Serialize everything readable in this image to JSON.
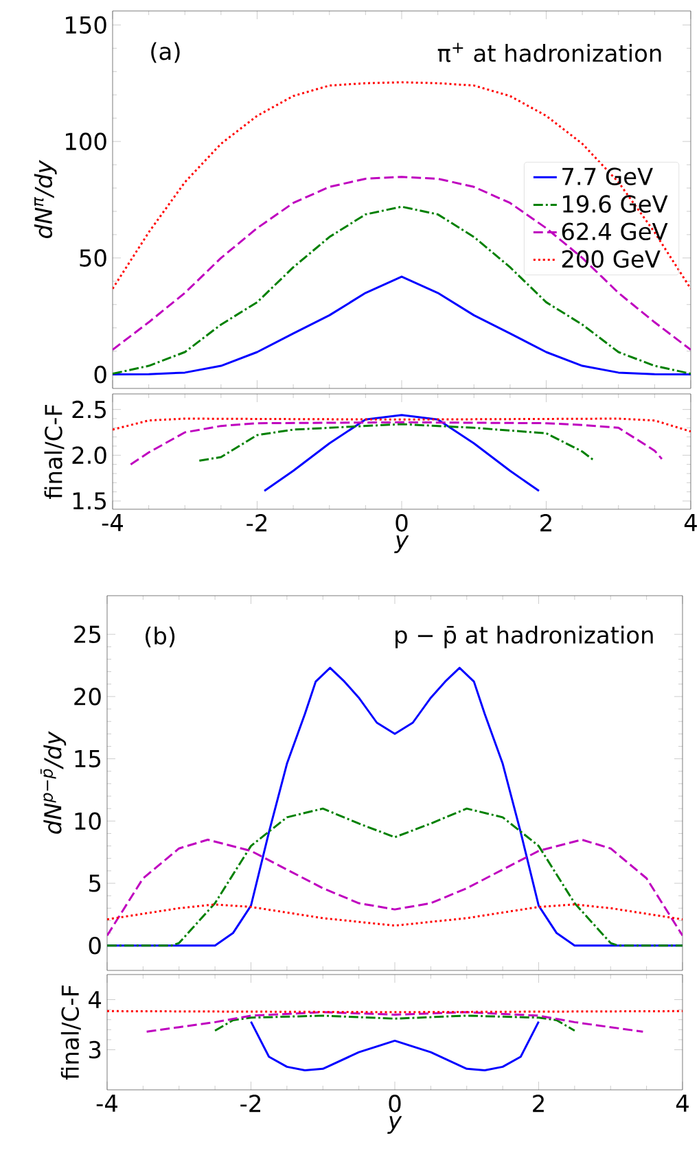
{
  "chart_data": [
    {
      "type": "line",
      "annotations": [
        "(a)",
        "π$^{+}$ at hadronization"
      ],
      "ylabel": "dN$^{π}$/dy",
      "xlim": [
        -4,
        4
      ],
      "xticks": [
        -4,
        -2,
        0,
        2,
        4
      ],
      "ylim": [
        -6,
        156
      ],
      "yticks": [
        0,
        50,
        100,
        150
      ],
      "tick_labels": "y",
      "legend": "right",
      "marker": "none",
      "series": [
        {
          "name": "7.7 GeV",
          "color": "#0000ff",
          "line_style": "solid",
          "x": [
            -4,
            -3.5,
            -3,
            -2.5,
            -2,
            -1.5,
            -1,
            -0.5,
            0,
            0.5,
            1,
            1.5,
            2,
            2.5,
            3,
            3.5,
            4
          ],
          "values": [
            0,
            0.1,
            0.8,
            3.7,
            9.6,
            17.6,
            25.4,
            35,
            42,
            35,
            25.4,
            17.6,
            9.6,
            3.7,
            0.8,
            0.1,
            0
          ]
        },
        {
          "name": "19.6 GeV",
          "color": "#008000",
          "line_style": "dashdot",
          "x": [
            -4,
            -3.5,
            -3,
            -2.5,
            -2,
            -1.5,
            -1,
            -0.5,
            0,
            0.5,
            1,
            1.5,
            2,
            2.5,
            3,
            3.5,
            4
          ],
          "values": [
            0.3,
            3.7,
            9.6,
            21.4,
            31,
            46,
            59,
            68.7,
            72,
            68.7,
            59,
            46,
            31,
            21.4,
            9.6,
            3.7,
            0.3
          ]
        },
        {
          "name": "62.4 GeV",
          "color": "#bf00bf",
          "line_style": "dashed",
          "x": [
            -4,
            -3.5,
            -3,
            -2.5,
            -2,
            -1.5,
            -1,
            -0.5,
            0,
            0.5,
            1,
            1.5,
            2,
            2.5,
            3,
            3.5,
            4
          ],
          "values": [
            10.6,
            22.4,
            35,
            50,
            62.8,
            73.6,
            80.5,
            84,
            84.8,
            84,
            80.5,
            73.6,
            62.8,
            50,
            35,
            22.4,
            10.6
          ]
        },
        {
          "name": "200 GeV",
          "color": "#ff0000",
          "line_style": "dotted",
          "x": [
            -4,
            -3.5,
            -3,
            -2.5,
            -2,
            -1.5,
            -1,
            -0.5,
            0,
            0.5,
            1,
            1.5,
            2,
            2.5,
            3,
            3.5,
            4
          ],
          "values": [
            36.8,
            61,
            82.5,
            99,
            111,
            119.5,
            124,
            125,
            125.4,
            125,
            124,
            119.5,
            111,
            99,
            82.5,
            61,
            36.8
          ]
        }
      ]
    },
    {
      "type": "line",
      "xlabel": "y",
      "ylabel": "final/C-F",
      "xlim": [
        -4,
        4
      ],
      "xticks": [
        -4,
        -2,
        0,
        2,
        4
      ],
      "ylim": [
        1.41,
        2.67
      ],
      "yticks": [
        1.5,
        {
          "value": 2,
          "label": "2.0"
        },
        2.5
      ],
      "marker": "none",
      "series": [
        {
          "color": "#0000ff",
          "line_style": "solid",
          "x": [
            -1.9,
            -1.5,
            -1,
            -0.5,
            0,
            0.5,
            1,
            1.5,
            1.9
          ],
          "values": [
            1.61,
            1.83,
            2.13,
            2.39,
            2.44,
            2.39,
            2.13,
            1.83,
            1.61
          ]
        },
        {
          "color": "#008000",
          "line_style": "dashdot",
          "x": [
            -2.8,
            -2.5,
            -2,
            -1.5,
            -1,
            0,
            1,
            2,
            2.5,
            2.65
          ],
          "values": [
            1.94,
            1.98,
            2.22,
            2.28,
            2.3,
            2.34,
            2.3,
            2.24,
            2.04,
            1.95
          ]
        },
        {
          "color": "#bf00bf",
          "line_style": "dashed",
          "x": [
            -3.75,
            -3.5,
            -3,
            -2.5,
            -2,
            0,
            2,
            2.5,
            3,
            3.5,
            3.6
          ],
          "values": [
            1.9,
            2.03,
            2.25,
            2.32,
            2.35,
            2.36,
            2.35,
            2.33,
            2.3,
            2.05,
            1.96
          ]
        },
        {
          "color": "#ff0000",
          "line_style": "dotted",
          "x": [
            -4,
            -3.5,
            -3,
            0,
            3,
            3.5,
            4
          ],
          "values": [
            2.28,
            2.38,
            2.4,
            2.39,
            2.4,
            2.38,
            2.26
          ]
        }
      ]
    },
    {
      "type": "line",
      "annotations": [
        "(b)",
        "p − p̄ at hadronization"
      ],
      "ylabel": "dN$^{p−p̄}$/dy",
      "xlim": [
        -4,
        4
      ],
      "xticks": [
        -4,
        -2,
        0,
        2,
        4
      ],
      "ylim": [
        -2,
        28.1
      ],
      "yticks": [
        0,
        5,
        10,
        15,
        20,
        25
      ],
      "tick_labels": "y",
      "marker": "none",
      "series": [
        {
          "color": "#0000ff",
          "line_style": "solid",
          "x": [
            -4,
            -2.5,
            -2.25,
            -2,
            -1.75,
            -1.5,
            -1.25,
            -1.1,
            -0.9,
            -0.7,
            -0.5,
            -0.25,
            0,
            0.25,
            0.5,
            0.7,
            0.9,
            1.1,
            1.25,
            1.5,
            1.75,
            2,
            2.25,
            2.5,
            4
          ],
          "values": [
            0,
            0,
            1,
            3.2,
            9.1,
            14.6,
            18.6,
            21.2,
            22.3,
            21.2,
            19.9,
            17.9,
            17,
            17.9,
            19.9,
            21.2,
            22.3,
            21.2,
            18.6,
            14.6,
            9.1,
            3.2,
            1,
            0,
            0
          ]
        },
        {
          "color": "#008000",
          "line_style": "dashdot",
          "x": [
            -4,
            -3.1,
            -3,
            -2.5,
            -2,
            -1.5,
            -1,
            -0.5,
            0,
            0.5,
            1,
            1.5,
            2,
            2.5,
            3,
            3.1,
            4
          ],
          "values": [
            0,
            0,
            0.2,
            3.4,
            8,
            10.3,
            11,
            9.8,
            8.7,
            9.8,
            11,
            10.3,
            8,
            3.4,
            0.2,
            0,
            0
          ]
        },
        {
          "color": "#bf00bf",
          "line_style": "dashed",
          "x": [
            -4,
            -3.5,
            -3,
            -2.6,
            -2,
            -1.5,
            -1,
            -0.5,
            0,
            0.5,
            1,
            1.5,
            2,
            2.6,
            3,
            3.5,
            4
          ],
          "values": [
            0.8,
            5.4,
            7.8,
            8.5,
            7.6,
            6.1,
            4.6,
            3.4,
            2.9,
            3.4,
            4.6,
            6.1,
            7.6,
            8.5,
            7.8,
            5.4,
            0.8
          ]
        },
        {
          "color": "#ff0000",
          "line_style": "dotted",
          "x": [
            -4,
            -3,
            -2.5,
            -2,
            -1,
            0,
            1,
            2,
            2.5,
            3,
            4
          ],
          "values": [
            2.1,
            3,
            3.3,
            3.1,
            2.2,
            1.6,
            2.2,
            3.1,
            3.3,
            3,
            2.1
          ]
        }
      ]
    },
    {
      "type": "line",
      "xlabel": "y",
      "ylabel": "final/C-F",
      "xlim": [
        -4,
        4
      ],
      "xticks": [
        -4,
        -2,
        0,
        2,
        4
      ],
      "ylim": [
        2.2,
        4.5
      ],
      "yticks": [
        3,
        4
      ],
      "marker": "none",
      "series": [
        {
          "color": "#0000ff",
          "line_style": "solid",
          "x": [
            -2,
            -1.75,
            -1.5,
            -1.25,
            -1,
            -0.5,
            0,
            0.5,
            1,
            1.25,
            1.5,
            1.75,
            2
          ],
          "values": [
            3.56,
            2.86,
            2.66,
            2.59,
            2.62,
            2.95,
            3.18,
            2.95,
            2.62,
            2.59,
            2.66,
            2.86,
            3.56
          ]
        },
        {
          "color": "#008000",
          "line_style": "dashdot",
          "x": [
            -2.5,
            -2.25,
            -2,
            -1,
            0,
            1,
            2,
            2.25,
            2.5
          ],
          "values": [
            3.38,
            3.59,
            3.64,
            3.68,
            3.62,
            3.68,
            3.64,
            3.59,
            3.38
          ]
        },
        {
          "color": "#bf00bf",
          "line_style": "dashed",
          "x": [
            -3.45,
            -3,
            -2.5,
            -2,
            -1,
            0,
            1,
            2,
            2.5,
            3,
            3.45
          ],
          "values": [
            3.36,
            3.45,
            3.55,
            3.68,
            3.75,
            3.7,
            3.75,
            3.68,
            3.55,
            3.45,
            3.36
          ]
        },
        {
          "color": "#ff0000",
          "line_style": "dotted",
          "x": [
            -4,
            0,
            4
          ],
          "values": [
            3.77,
            3.75,
            3.77
          ]
        }
      ]
    }
  ]
}
